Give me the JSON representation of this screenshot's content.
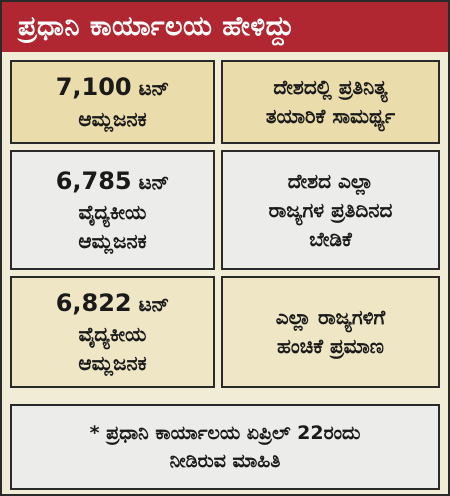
{
  "title": "ಪ್ರಧಾನಿ ಕಾರ್ಯಾಲಯ ಹೇಳಿದ್ದು",
  "rows": [
    {
      "amount": "7,100",
      "unit": "ಟನ್",
      "left_lines": [
        "ಆಮ್ಲಜನಕ"
      ],
      "right_lines": [
        "ದೇಶದಲ್ಲಿ ಪ್ರತಿನಿತ್ಯ",
        "ತಯಾರಿಕೆ ಸಾಮರ್ಥ್ಯ"
      ]
    },
    {
      "amount": "6,785",
      "unit": "ಟನ್",
      "left_lines": [
        "ವೈದ್ಯಕೀಯ",
        "ಆಮ್ಲಜನಕ"
      ],
      "right_lines": [
        "ದೇಶದ ಎಲ್ಲಾ",
        "ರಾಜ್ಯಗಳ ಪ್ರತಿದಿನದ",
        "ಬೇಡಿಕೆ"
      ]
    },
    {
      "amount": "6,822",
      "unit": "ಟನ್",
      "left_lines": [
        "ವೈದ್ಯಕೀಯ",
        "ಆಮ್ಲಜನಕ"
      ],
      "right_lines": [
        "ಎಲ್ಲಾ ರಾಜ್ಯಗಳಿಗೆ",
        "ಹಂಚಿಕೆ ಪ್ರಮಾಣ"
      ]
    }
  ],
  "footnote": {
    "line1": "* ಪ್ರಧಾನಿ ಕಾರ್ಯಾಲಯ ಏಪ್ರಿಲ್ 22ರಂದು",
    "line2": "ನೀಡಿರುವ ಮಾಹಿತಿ"
  },
  "colors": {
    "title_bar": "#b02631",
    "row1": "#ebdcab",
    "row2": "#ececea",
    "row3": "#efe6c5"
  }
}
